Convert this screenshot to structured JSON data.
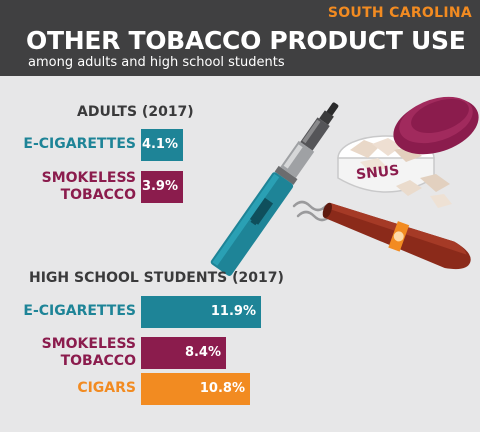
{
  "header": {
    "state": "SOUTH CAROLINA",
    "title": "OTHER TOBACCO PRODUCT USE",
    "subtitle": "among adults and high school students"
  },
  "illustration": {
    "snus_label": "SNUS"
  },
  "colors": {
    "ecig": "#1e8497",
    "smokeless": "#8b1c4d",
    "cigars": "#f28b21",
    "header_bg": "#404041",
    "background": "#e7e7e8"
  },
  "chart_data": [
    {
      "type": "bar",
      "title": "ADULTS (2017)",
      "categories": [
        "E-CIGARETTES",
        "SMOKELESS TOBACCO"
      ],
      "values": [
        4.1,
        3.9
      ],
      "value_labels": [
        "4.1%",
        "3.9%"
      ],
      "unit": "%"
    },
    {
      "type": "bar",
      "title": "HIGH SCHOOL STUDENTS (2017)",
      "categories": [
        "E-CIGARETTES",
        "SMOKELESS TOBACCO",
        "CIGARS"
      ],
      "values": [
        11.9,
        8.4,
        10.8
      ],
      "value_labels": [
        "11.9%",
        "8.4%",
        "10.8%"
      ],
      "unit": "%"
    }
  ]
}
